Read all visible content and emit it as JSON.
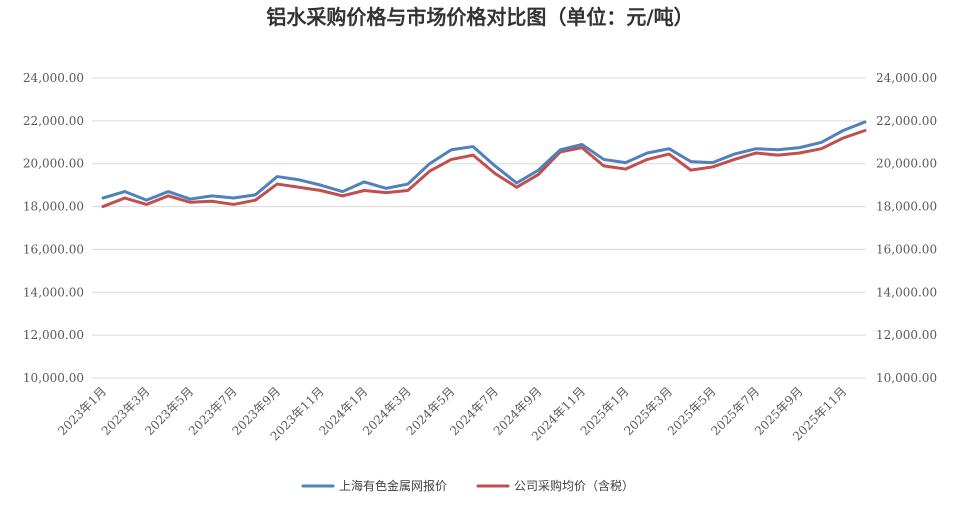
{
  "chart_data": {
    "type": "line",
    "title": "铝水采购价格与市场价格对比图（单位：元/吨）",
    "y_ticks": [
      "10,000.00",
      "12,000.00",
      "14,000.00",
      "16,000.00",
      "18,000.00",
      "20,000.00",
      "22,000.00",
      "24,000.00"
    ],
    "y_tick_values": [
      10000,
      12000,
      14000,
      16000,
      18000,
      20000,
      22000,
      24000
    ],
    "ylim": [
      10000,
      24000
    ],
    "x_count": 36,
    "x_tick_labels": [
      "2023年1月",
      "2023年3月",
      "2023年5月",
      "2023年7月",
      "2023年9月",
      "2023年11月",
      "2024年1月",
      "2024年3月",
      "2024年5月",
      "2024年7月",
      "2024年9月",
      "2024年11月",
      "2025年1月",
      "2025年3月",
      "2025年5月",
      "2025年7月",
      "2025年9月",
      "2025年11月"
    ],
    "x_tick_index": [
      0,
      2,
      4,
      6,
      8,
      10,
      12,
      14,
      16,
      18,
      20,
      22,
      24,
      26,
      28,
      30,
      32,
      34
    ],
    "grid": true,
    "legend_position": "bottom",
    "series": [
      {
        "name": "上海有色金属网报价",
        "color": "#4F81BD",
        "values": [
          18400,
          18700,
          18300,
          18700,
          18350,
          18500,
          18400,
          18550,
          19400,
          19250,
          19000,
          18700,
          19150,
          18850,
          19050,
          20000,
          20650,
          20800,
          19900,
          19100,
          19700,
          20650,
          20900,
          20200,
          20050,
          20500,
          20700,
          20100,
          20050,
          20450,
          20700,
          20650,
          20750,
          21000,
          21550,
          21950
        ]
      },
      {
        "name": "公司采购均价（含税）",
        "color": "#C0504D",
        "values": [
          18000,
          18400,
          18100,
          18500,
          18200,
          18250,
          18100,
          18300,
          19050,
          18900,
          18750,
          18500,
          18750,
          18650,
          18750,
          19650,
          20200,
          20400,
          19550,
          18900,
          19500,
          20550,
          20750,
          19900,
          19750,
          20200,
          20450,
          19700,
          19850,
          20200,
          20500,
          20400,
          20500,
          20700,
          21200,
          21550
        ]
      }
    ]
  }
}
